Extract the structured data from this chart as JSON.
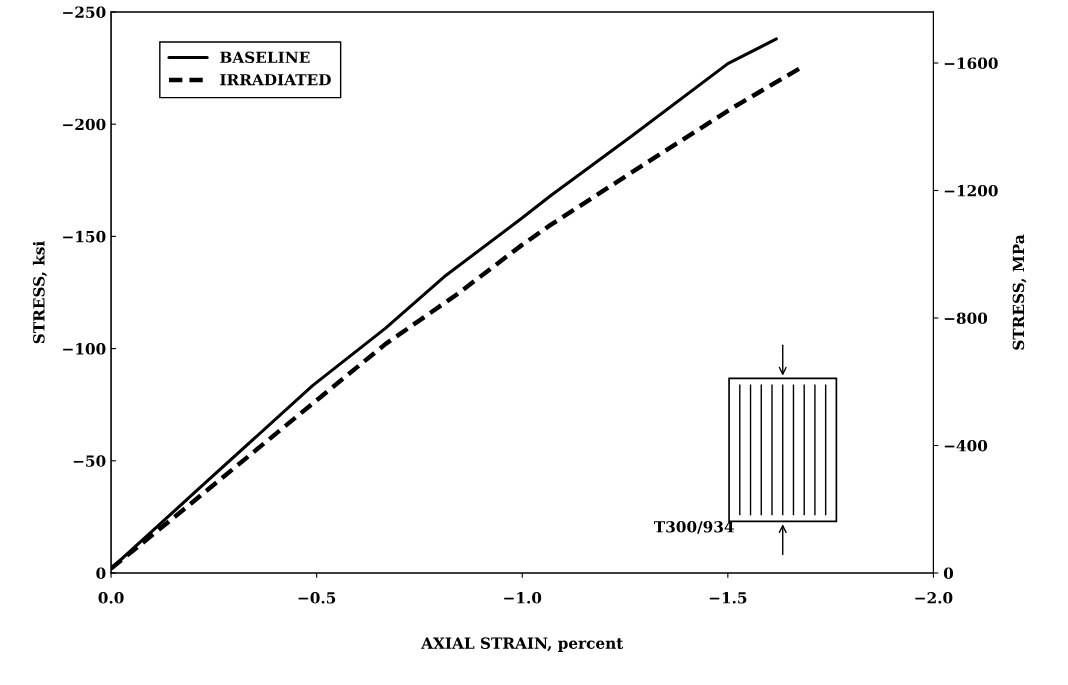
{
  "chart_data": {
    "type": "line",
    "xlabel": "AXIAL STRAIN, percent",
    "ylabel": "STRESS, ksi",
    "y2label": "STRESS, MPa",
    "xlim": [
      0,
      -2.0
    ],
    "xticks": [
      {
        "value": 0,
        "label": "0.0"
      },
      {
        "value": -0.5,
        "label": "−0.5"
      },
      {
        "value": -1.0,
        "label": "−1.0"
      },
      {
        "value": -1.5,
        "label": "−1.5"
      },
      {
        "value": -2.0,
        "label": "−2.0"
      }
    ],
    "ylim": [
      0,
      -250
    ],
    "yticks": [
      {
        "value": 0,
        "label": "0"
      },
      {
        "value": -50,
        "label": "−50"
      },
      {
        "value": -100,
        "label": "−100"
      },
      {
        "value": -150,
        "label": "−150"
      },
      {
        "value": -200,
        "label": "−200"
      },
      {
        "value": -250,
        "label": "−250"
      }
    ],
    "y2lim": [
      0,
      -1760
    ],
    "y2ticks": [
      {
        "value": 0,
        "label": "0"
      },
      {
        "value": -400,
        "label": "−400"
      },
      {
        "value": -800,
        "label": "−800"
      },
      {
        "value": -1200,
        "label": "−1200"
      },
      {
        "value": -1600,
        "label": "−1600"
      }
    ],
    "legend": "top left",
    "grid": false,
    "series": [
      {
        "name": "BASELINE",
        "color": "#000000",
        "line_style": "solid",
        "x": [
          0,
          -0.204,
          -0.49,
          -0.667,
          -0.81,
          -0.998,
          -1.068,
          -1.268,
          -1.5,
          -1.618
        ],
        "values": [
          -2,
          -36,
          -83.5,
          -109,
          -132,
          -158,
          -168,
          -195,
          -227,
          -238
        ]
      },
      {
        "name": "IRRADIATED",
        "color": "#000000",
        "line_style": "dashed",
        "x": [
          0,
          -0.204,
          -0.49,
          -0.667,
          -0.84,
          -0.998,
          -1.068,
          -1.287,
          -1.518,
          -1.676
        ],
        "values": [
          -2,
          -32.4,
          -75.5,
          -102,
          -124,
          -146,
          -155,
          -181,
          -208,
          -225
        ]
      }
    ],
    "annotations": [
      "T300/934"
    ]
  }
}
